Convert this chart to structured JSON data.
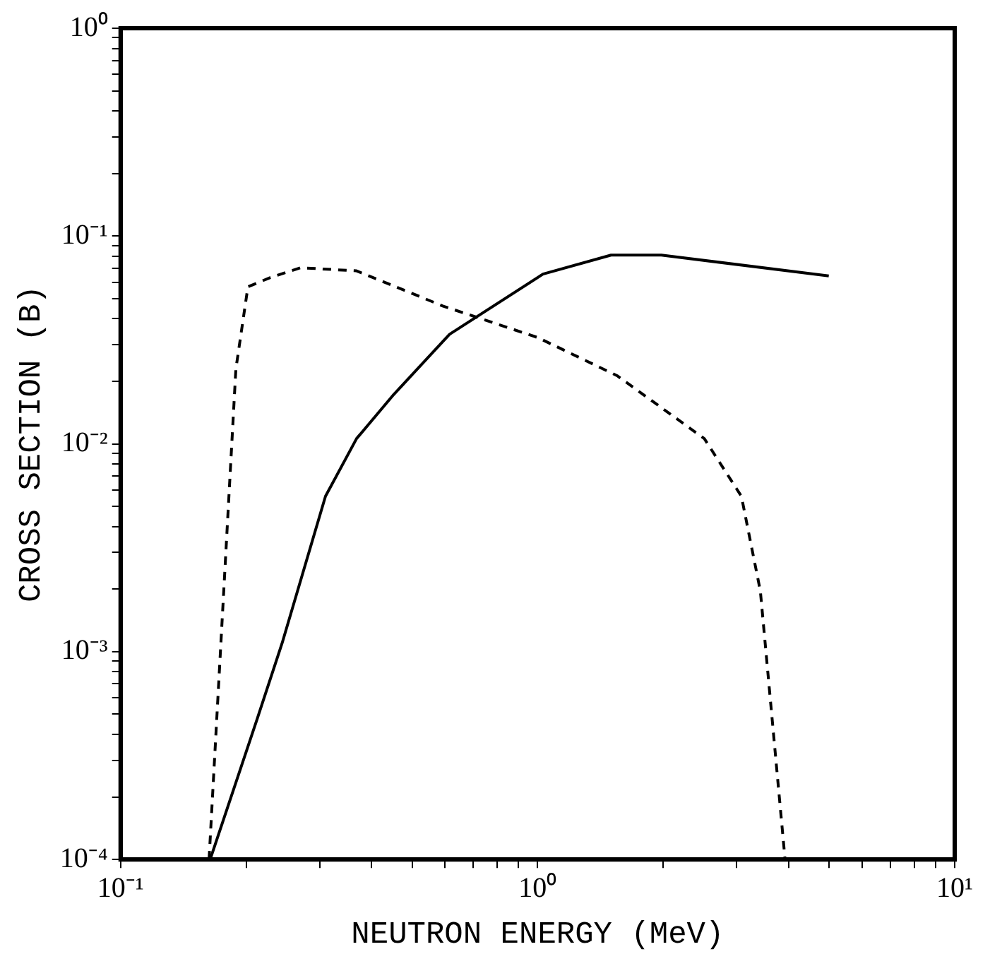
{
  "chart_data": {
    "type": "line",
    "xlabel": "NEUTRON ENERGY (MeV)",
    "ylabel": "CROSS SECTION (B)",
    "log": "xy",
    "grid": false,
    "legend": false,
    "marker": "none",
    "xlim": [
      0.1,
      10
    ],
    "xticks": [
      {
        "value": 0.1,
        "label": "10⁻¹"
      },
      {
        "value": 0.2,
        "label": null
      },
      {
        "value": 0.3,
        "label": null
      },
      {
        "value": 0.4,
        "label": null
      },
      {
        "value": 0.5,
        "label": null
      },
      {
        "value": 0.6,
        "label": null
      },
      {
        "value": 0.7,
        "label": null
      },
      {
        "value": 0.8,
        "label": null
      },
      {
        "value": 0.9,
        "label": null
      },
      {
        "value": 1,
        "label": "10⁰"
      },
      {
        "value": 2,
        "label": null
      },
      {
        "value": 3,
        "label": null
      },
      {
        "value": 4,
        "label": null
      },
      {
        "value": 5,
        "label": null
      },
      {
        "value": 6,
        "label": null
      },
      {
        "value": 7,
        "label": null
      },
      {
        "value": 8,
        "label": null
      },
      {
        "value": 9,
        "label": null
      },
      {
        "value": 10,
        "label": "10¹"
      }
    ],
    "ylim": [
      0.0001,
      1
    ],
    "yticks": [
      {
        "value": 0.0001,
        "label": "10⁻⁴"
      },
      {
        "value": 0.0002,
        "label": null
      },
      {
        "value": 0.0003,
        "label": null
      },
      {
        "value": 0.0004,
        "label": null
      },
      {
        "value": 0.0005,
        "label": null
      },
      {
        "value": 0.0006,
        "label": null
      },
      {
        "value": 0.0007,
        "label": null
      },
      {
        "value": 0.0008,
        "label": null
      },
      {
        "value": 0.0009,
        "label": null
      },
      {
        "value": 0.001,
        "label": "10⁻³"
      },
      {
        "value": 0.002,
        "label": null
      },
      {
        "value": 0.003,
        "label": null
      },
      {
        "value": 0.004,
        "label": null
      },
      {
        "value": 0.005,
        "label": null
      },
      {
        "value": 0.006,
        "label": null
      },
      {
        "value": 0.007,
        "label": null
      },
      {
        "value": 0.008,
        "label": null
      },
      {
        "value": 0.009,
        "label": null
      },
      {
        "value": 0.01,
        "label": "10⁻²"
      },
      {
        "value": 0.02,
        "label": null
      },
      {
        "value": 0.03,
        "label": null
      },
      {
        "value": 0.04,
        "label": null
      },
      {
        "value": 0.05,
        "label": null
      },
      {
        "value": 0.06,
        "label": null
      },
      {
        "value": 0.07,
        "label": null
      },
      {
        "value": 0.08,
        "label": null
      },
      {
        "value": 0.09,
        "label": null
      },
      {
        "value": 0.1,
        "label": "10⁻¹"
      },
      {
        "value": 0.2,
        "label": null
      },
      {
        "value": 0.3,
        "label": null
      },
      {
        "value": 0.4,
        "label": null
      },
      {
        "value": 0.5,
        "label": null
      },
      {
        "value": 0.6,
        "label": null
      },
      {
        "value": 0.7,
        "label": null
      },
      {
        "value": 0.8,
        "label": null
      },
      {
        "value": 0.9,
        "label": null
      },
      {
        "value": 1,
        "label": "10⁰"
      }
    ],
    "series": [
      {
        "color": "#000000",
        "line_style": "solid",
        "x": [
          0.164,
          0.213,
          0.244,
          0.31,
          0.368,
          0.452,
          0.615,
          1.03,
          1.5,
          1.98,
          4.99
        ],
        "values": [
          0.0001,
          0.00048,
          0.0011,
          0.0056,
          0.0106,
          0.0173,
          0.0337,
          0.0656,
          0.081,
          0.081,
          0.0643
        ]
      },
      {
        "color": "#000000",
        "line_style": "dashed",
        "x": [
          0.163,
          0.189,
          0.202,
          0.228,
          0.27,
          0.368,
          0.594,
          1.0,
          1.55,
          2.51,
          3.08,
          3.42,
          3.92
        ],
        "values": [
          0.0001,
          0.0229,
          0.057,
          0.063,
          0.0704,
          0.068,
          0.046,
          0.0325,
          0.0213,
          0.0106,
          0.0056,
          0.00196,
          0.0001
        ]
      }
    ]
  }
}
